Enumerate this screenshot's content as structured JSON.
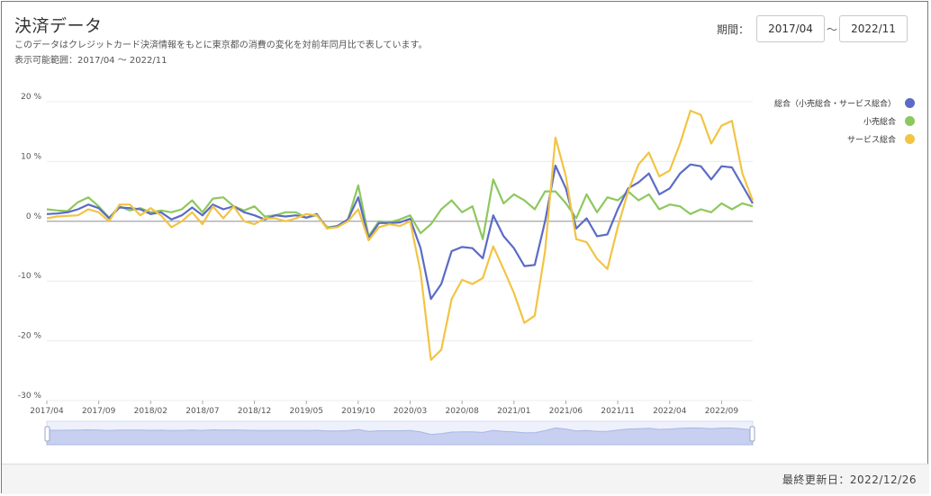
{
  "header": {
    "title": "決済データ",
    "description": "このデータはクレジットカード決済情報をもとに東京都の消費の変化を対前年同月比で表しています。",
    "range_text": "表示可能範囲：2017/04 〜 2022/11"
  },
  "period": {
    "label": "期間：",
    "from": "2017/04",
    "tilde": "〜",
    "to": "2022/11"
  },
  "footer": {
    "last_updated": "最終更新日：2022/12/26"
  },
  "colors": {
    "total": "#5b6bc6",
    "retail": "#8dc85e",
    "service": "#f2c444"
  },
  "chart_data": {
    "type": "line",
    "ylim": [
      -30,
      20
    ],
    "yticks": [
      20,
      10,
      0,
      -10,
      -20,
      -30
    ],
    "ytick_labels": [
      "20 %",
      "10 %",
      "0 %",
      "-10 %",
      "-20 %",
      "-30 %"
    ],
    "xtick_labels": [
      "2017/04",
      "2017/09",
      "2018/02",
      "2018/07",
      "2018/12",
      "2019/05",
      "2019/10",
      "2020/03",
      "2020/08",
      "2021/01",
      "2021/06",
      "2021/11",
      "2022/04",
      "2022/09"
    ],
    "x_start": "2017/04",
    "x_end": "2022/11",
    "grid": true,
    "legend_position": "top-right",
    "series": [
      {
        "name": "総合（小売総合・サービス総合）",
        "color": "#5b6bc6",
        "values": [
          1.2,
          1.3,
          1.5,
          2.0,
          2.8,
          2.2,
          0.5,
          2.3,
          2.2,
          2.0,
          1.2,
          1.5,
          0.3,
          1.0,
          2.3,
          1.0,
          2.8,
          2.0,
          2.5,
          1.5,
          1.0,
          0.3,
          1.0,
          0.8,
          1.0,
          0.6,
          1.2,
          -1.2,
          -0.8,
          0.3,
          4.0,
          -2.8,
          -0.3,
          -0.3,
          -0.2,
          0.4,
          -4.5,
          -13.0,
          -10.5,
          -5.0,
          -4.3,
          -4.5,
          -6.2,
          1.0,
          -2.5,
          -4.5,
          -7.5,
          -7.3,
          0.0,
          9.3,
          5.5,
          -1.2,
          0.5,
          -2.5,
          -2.2,
          2.0,
          5.5,
          6.5,
          8.0,
          4.5,
          5.5,
          8.0,
          9.5,
          9.2,
          7.0,
          9.2,
          9.0,
          6.0,
          3.0
        ]
      },
      {
        "name": "小売総合",
        "color": "#8dc85e",
        "values": [
          2.0,
          1.8,
          1.7,
          3.2,
          4.0,
          2.5,
          0.6,
          2.5,
          1.8,
          2.2,
          1.5,
          1.8,
          1.5,
          2.0,
          3.5,
          1.5,
          3.8,
          4.0,
          2.5,
          1.8,
          2.5,
          0.8,
          1.0,
          1.5,
          1.5,
          0.6,
          1.0,
          -1.0,
          -0.8,
          0.3,
          6.0,
          -2.5,
          0.0,
          -0.2,
          0.3,
          1.0,
          -2.0,
          -0.5,
          2.0,
          3.5,
          1.5,
          2.5,
          -3.0,
          7.0,
          3.0,
          4.5,
          3.5,
          2.0,
          5.0,
          5.0,
          3.0,
          0.5,
          4.5,
          1.5,
          4.0,
          3.5,
          5.0,
          3.5,
          4.5,
          2.0,
          2.8,
          2.5,
          1.2,
          2.0,
          1.5,
          3.0,
          2.0,
          3.0,
          2.5
        ]
      },
      {
        "name": "サービス総合",
        "color": "#f2c444",
        "values": [
          0.5,
          0.8,
          0.9,
          1.0,
          2.0,
          1.5,
          0.0,
          2.8,
          2.8,
          1.0,
          2.2,
          1.0,
          -1.0,
          0.0,
          1.5,
          -0.5,
          2.5,
          0.5,
          2.5,
          0.0,
          -0.5,
          0.5,
          0.5,
          0.0,
          0.5,
          1.2,
          1.0,
          -1.2,
          -1.0,
          0.0,
          2.0,
          -3.2,
          -1.0,
          -0.5,
          -0.8,
          0.0,
          -8.5,
          -23.2,
          -21.5,
          -13.0,
          -9.8,
          -10.5,
          -9.5,
          -4.2,
          -8.0,
          -12.0,
          -17.0,
          -15.8,
          -5.0,
          14.0,
          7.5,
          -3.0,
          -3.5,
          -6.3,
          -8.0,
          -1.0,
          5.0,
          9.5,
          11.5,
          7.5,
          8.5,
          13.0,
          18.5,
          17.8,
          13.0,
          16.0,
          16.8,
          8.0,
          3.5
        ]
      }
    ]
  }
}
